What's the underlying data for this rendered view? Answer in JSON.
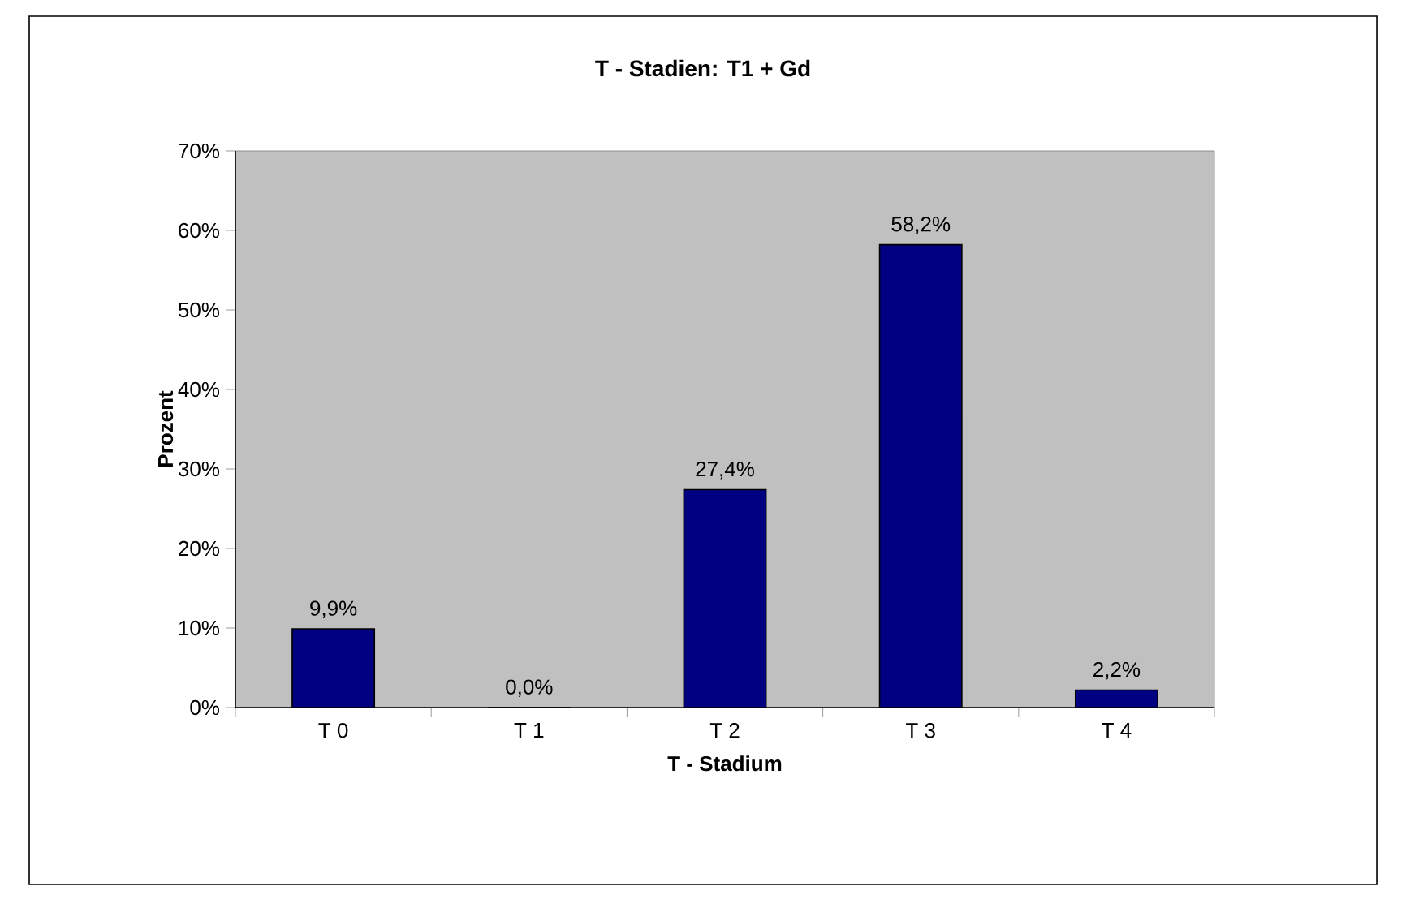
{
  "chart_data": {
    "type": "bar",
    "title": "T - Stadien: T1 + Gd",
    "xlabel": "T - Stadium",
    "ylabel": "Prozent",
    "categories": [
      "T 0",
      "T 1",
      "T 2",
      "T 3",
      "T 4"
    ],
    "values": [
      9.9,
      0.0,
      27.4,
      58.2,
      2.2
    ],
    "value_labels": [
      "9,9%",
      "0,0%",
      "27,4%",
      "58,2%",
      "2,2%"
    ],
    "color": "#000080",
    "ylim": [
      0,
      70
    ],
    "yticks": [
      {
        "value": 0,
        "label": "0%"
      },
      {
        "value": 10,
        "label": "10%"
      },
      {
        "value": 20,
        "label": "20%"
      },
      {
        "value": 30,
        "label": "30%"
      },
      {
        "value": 40,
        "label": "40%"
      },
      {
        "value": 50,
        "label": "50%"
      },
      {
        "value": 60,
        "label": "60%"
      },
      {
        "value": 70,
        "label": "70%"
      }
    ],
    "grid": false
  }
}
